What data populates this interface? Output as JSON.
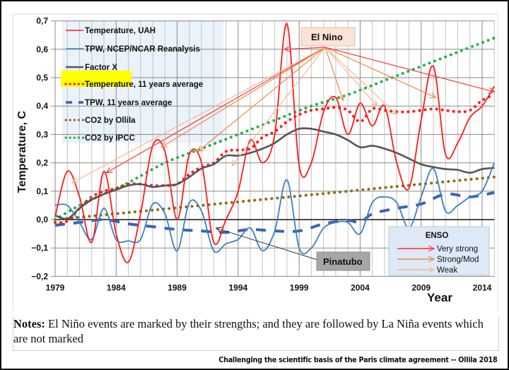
{
  "chart_data": {
    "type": "line",
    "title": "",
    "xlabel": "Year",
    "ylabel": "Temperature, C",
    "xlim": [
      1979,
      2015
    ],
    "ylim": [
      -0.2,
      0.7
    ],
    "grid": true,
    "x_ticks": [
      "1979",
      "1984",
      "1989",
      "1994",
      "1999",
      "2004",
      "2009",
      "2014"
    ],
    "y_ticks": [
      "0,7",
      "0,6",
      "0,5",
      "0,4",
      "0,3",
      "0,2",
      "0,1",
      "0,0",
      "−0,1",
      "−0,2"
    ],
    "legend_position": "top-left",
    "series": [
      {
        "name": "Temperature, UAH",
        "style": "solid",
        "color": "#ff1a1a",
        "x": [
          1979,
          1980,
          1981,
          1982,
          1983,
          1984,
          1985,
          1986,
          1987,
          1988,
          1989,
          1990,
          1991,
          1992,
          1993,
          1994,
          1995,
          1996,
          1997,
          1998,
          1999,
          2000,
          2001,
          2002,
          2003,
          2004,
          2005,
          2006,
          2007,
          2008,
          2009,
          2010,
          2011,
          2012,
          2013,
          2014,
          2015
        ],
        "y": [
          0.01,
          0.17,
          0.08,
          -0.08,
          0.17,
          -0.05,
          -0.15,
          0.02,
          0.26,
          0.24,
          0.0,
          0.23,
          0.2,
          -0.08,
          0.0,
          0.1,
          0.28,
          0.2,
          0.3,
          0.69,
          0.19,
          0.2,
          0.38,
          0.43,
          0.3,
          0.41,
          0.33,
          0.4,
          0.2,
          0.11,
          0.35,
          0.54,
          0.23,
          0.27,
          0.36,
          0.4,
          0.47
        ]
      },
      {
        "name": "TPW, NCEP/NCAR Reanalysis",
        "style": "solid",
        "color": "#3a7fc4",
        "x": [
          1979,
          1980,
          1981,
          1982,
          1983,
          1984,
          1985,
          1986,
          1987,
          1988,
          1989,
          1990,
          1991,
          1992,
          1993,
          1994,
          1995,
          1996,
          1997,
          1998,
          1999,
          2000,
          2001,
          2002,
          2003,
          2004,
          2005,
          2006,
          2007,
          2008,
          2009,
          2010,
          2011,
          2012,
          2013,
          2014,
          2015
        ],
        "y": [
          0.05,
          0.05,
          -0.01,
          -0.07,
          0.04,
          -0.07,
          -0.075,
          -0.07,
          0.055,
          0.02,
          -0.11,
          0.06,
          0.03,
          -0.11,
          -0.085,
          -0.07,
          -0.03,
          -0.11,
          -0.04,
          0.14,
          -0.1,
          -0.1,
          -0.03,
          -0.01,
          -0.01,
          -0.05,
          0.06,
          0.08,
          0.06,
          -0.03,
          0.08,
          0.18,
          0.03,
          0.05,
          0.08,
          0.1,
          0.2
        ]
      },
      {
        "name": "Factor X",
        "style": "solid",
        "color": "#555555",
        "x": [
          1979,
          1980,
          1981,
          1982,
          1983,
          1984,
          1985,
          1986,
          1987,
          1988,
          1989,
          1990,
          1991,
          1992,
          1993,
          1994,
          1995,
          1996,
          1997,
          1998,
          1999,
          2000,
          2001,
          2002,
          2003,
          2004,
          2005,
          2006,
          2007,
          2008,
          2009,
          2010,
          2011,
          2012,
          2013,
          2014,
          2015
        ],
        "y": [
          0.015,
          0.003,
          0.04,
          0.07,
          0.09,
          0.105,
          0.12,
          0.125,
          0.115,
          0.12,
          0.125,
          0.15,
          0.18,
          0.195,
          0.225,
          0.225,
          0.235,
          0.25,
          0.27,
          0.3,
          0.32,
          0.32,
          0.31,
          0.3,
          0.28,
          0.255,
          0.26,
          0.25,
          0.235,
          0.215,
          0.195,
          0.185,
          0.178,
          0.175,
          0.165,
          0.178,
          0.182
        ]
      },
      {
        "name": "Temperature, 11 years average",
        "style": "dotted",
        "color": "#ff1a1a",
        "x": [
          1979,
          1980,
          1981,
          1982,
          1983,
          1984,
          1985,
          1986,
          1987,
          1988,
          1989,
          1990,
          1991,
          1992,
          1993,
          1994,
          1995,
          1996,
          1997,
          1998,
          1999,
          2000,
          2001,
          2002,
          2003,
          2004,
          2005,
          2006,
          2007,
          2008,
          2009,
          2010,
          2011,
          2012,
          2013,
          2014,
          2015
        ],
        "y": [
          -0.01,
          -0.005,
          0.04,
          0.08,
          0.1,
          0.11,
          0.125,
          0.125,
          0.12,
          0.12,
          0.125,
          0.16,
          0.185,
          0.2,
          0.24,
          0.245,
          0.25,
          0.29,
          0.31,
          0.345,
          0.37,
          0.385,
          0.39,
          0.395,
          0.385,
          0.345,
          0.39,
          0.385,
          0.38,
          0.38,
          0.385,
          0.39,
          0.385,
          0.38,
          0.385,
          0.42,
          0.44
        ]
      },
      {
        "name": "TPW, 11 years average",
        "style": "dashed",
        "color": "#3a64b4",
        "x": [
          1979,
          1981,
          1983,
          1985,
          1987,
          1989,
          1991,
          1993,
          1995,
          1997,
          1999,
          2001,
          2003,
          2004,
          2005,
          2007,
          2009,
          2011,
          2013,
          2015
        ],
        "y": [
          -0.02,
          -0.01,
          0.0,
          -0.015,
          -0.025,
          -0.035,
          -0.04,
          -0.045,
          -0.035,
          -0.04,
          -0.04,
          -0.015,
          -0.003,
          -0.01,
          0.02,
          0.04,
          0.055,
          0.09,
          0.08,
          0.095
        ]
      },
      {
        "name": "CO2 by Ollila",
        "style": "dotted",
        "color": "#8b6d16",
        "x": [
          1979,
          2015
        ],
        "y": [
          0.0,
          0.15
        ]
      },
      {
        "name": "CO2 by IPCC",
        "style": "dotted",
        "color": "#22b14c",
        "x": [
          1979,
          1981,
          1983,
          1985,
          1988,
          1991,
          1994,
          1997,
          2000,
          2003,
          2006,
          2009,
          2012,
          2015
        ],
        "y": [
          0.0,
          0.05,
          0.09,
          0.13,
          0.2,
          0.25,
          0.3,
          0.35,
          0.4,
          0.44,
          0.49,
          0.54,
          0.59,
          0.64
        ]
      }
    ],
    "annotations": [
      {
        "label": "El Nino",
        "type": "callout",
        "arrows": [
          {
            "to_year": 1980.4,
            "to_value": 0.13,
            "strength": "weak"
          },
          {
            "to_year": 1983.2,
            "to_value": 0.165,
            "strength": "very-strong"
          },
          {
            "to_year": 1987.7,
            "to_value": 0.255,
            "strength": "strong"
          },
          {
            "to_year": 1990.7,
            "to_value": 0.24,
            "strength": "strong"
          },
          {
            "to_year": 1993.5,
            "to_value": 0.19,
            "strength": "weak"
          },
          {
            "to_year": 1997.8,
            "to_value": 0.6,
            "strength": "very-strong"
          },
          {
            "to_year": 2002.6,
            "to_value": 0.42,
            "strength": "strong"
          },
          {
            "to_year": 2005.4,
            "to_value": 0.4,
            "strength": "weak"
          },
          {
            "to_year": 2007.0,
            "to_value": 0.37,
            "strength": "weak"
          },
          {
            "to_year": 2010.2,
            "to_value": 0.43,
            "strength": "strong"
          },
          {
            "to_year": 2015.0,
            "to_value": 0.45,
            "strength": "very-strong"
          }
        ]
      },
      {
        "label": "Pinatubo",
        "type": "callout",
        "arrows": [
          {
            "to_year": 1992.2,
            "to_value": -0.03
          }
        ]
      }
    ],
    "enso_legend": {
      "title": "ENSO",
      "items": [
        {
          "label": "Very strong",
          "color": "#ff2a2a"
        },
        {
          "label": "Strong/Mod",
          "color": "#f08a40"
        },
        {
          "label": "Weak",
          "color": "#f5b890"
        }
      ]
    },
    "highlighted_legend_item": "Factor X",
    "highlight_color": "#ffff00"
  },
  "notes": {
    "prefix": "Notes:",
    "text": " El Niño events are marked by their strengths; and they are followed by La Niña events which are not marked"
  },
  "credit": "Challenging the scientific basis of the Paris climate agreement -- Ollila 2018"
}
